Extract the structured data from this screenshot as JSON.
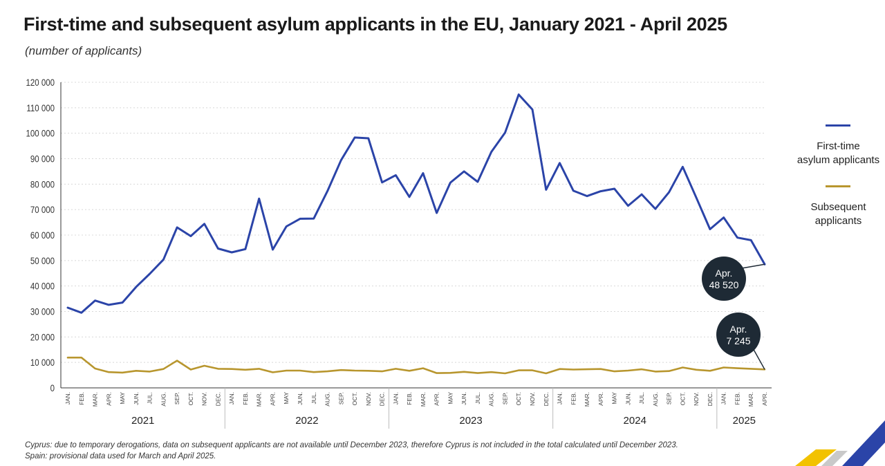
{
  "title": "First-time and subsequent asylum applicants in the EU, January 2021 - April 2025",
  "subtitle": "(number of applicants)",
  "legend": {
    "first_time": "First-time asylum applicants",
    "first_time_line1": "First-time",
    "first_time_line2": "asylum applicants",
    "subsequent": "Subsequent applicants",
    "subsequent_line1": "Subsequent",
    "subsequent_line2": "applicants"
  },
  "footnotes": [
    "Cyprus: due to temporary derogations, data on subsequent applicants are not available until December 2023, therefore Cyprus is not included in the total calculated until December 2023.",
    "Spain: provisional data used for March and April 2025."
  ],
  "chart_data": {
    "type": "line",
    "ylim": [
      0,
      120000
    ],
    "yticks": [
      "0",
      "10 000",
      "20 000",
      "30 000",
      "40 000",
      "50 000",
      "60 000",
      "70 000",
      "80 000",
      "90 000",
      "100 000",
      "110 000",
      "120 000"
    ],
    "ytick_values": [
      0,
      10000,
      20000,
      30000,
      40000,
      50000,
      60000,
      70000,
      80000,
      90000,
      100000,
      110000,
      120000
    ],
    "categories": [
      "JAN.",
      "FEB.",
      "MAR.",
      "APR.",
      "MAY",
      "JUN.",
      "JUL.",
      "AUG.",
      "SEP.",
      "OCT.",
      "NOV.",
      "DEC.",
      "JAN.",
      "FEB.",
      "MAR.",
      "APR.",
      "MAY",
      "JUN.",
      "JUL.",
      "AUG.",
      "SEP.",
      "OCT.",
      "NOV.",
      "DEC.",
      "JAN.",
      "FEB.",
      "MAR.",
      "APR.",
      "MAY",
      "JUN.",
      "JUL.",
      "AUG.",
      "SEP.",
      "OCT.",
      "NOV.",
      "DEC.",
      "JAN.",
      "FEB.",
      "MAR.",
      "APR.",
      "MAY",
      "JUN.",
      "JUL.",
      "AUG.",
      "SEP.",
      "OCT.",
      "NOV.",
      "DEC.",
      "JAN.",
      "FEB.",
      "MAR.",
      "APR."
    ],
    "years": [
      {
        "label": "2021",
        "start": 0,
        "end": 11
      },
      {
        "label": "2022",
        "start": 12,
        "end": 23
      },
      {
        "label": "2023",
        "start": 24,
        "end": 35
      },
      {
        "label": "2024",
        "start": 36,
        "end": 47
      },
      {
        "label": "2025",
        "start": 48,
        "end": 51
      }
    ],
    "series": [
      {
        "name": "First-time asylum applicants",
        "color": "#2b44a8",
        "values": [
          31500,
          29500,
          34300,
          32600,
          33500,
          39600,
          44800,
          50400,
          63000,
          59600,
          64400,
          54700,
          53200,
          54500,
          74300,
          54300,
          63400,
          66400,
          66500,
          77200,
          89400,
          98300,
          98000,
          80700,
          83500,
          75000,
          84300,
          68700,
          80600,
          85000,
          80900,
          92700,
          100200,
          115200,
          109300,
          77800,
          88300,
          77400,
          75300,
          77200,
          78200,
          71500,
          76000,
          70300,
          76800,
          86800,
          74600,
          62300,
          66900,
          59000,
          58000,
          48520
        ]
      },
      {
        "name": "Subsequent applicants",
        "color": "#b8962e",
        "values": [
          11900,
          11900,
          7600,
          6200,
          6000,
          6700,
          6400,
          7400,
          10700,
          7200,
          8700,
          7500,
          7400,
          7100,
          7500,
          6100,
          6800,
          6800,
          6200,
          6500,
          7000,
          6800,
          6700,
          6500,
          7500,
          6700,
          7700,
          5800,
          5900,
          6300,
          5800,
          6200,
          5700,
          6900,
          6900,
          5700,
          7400,
          7200,
          7300,
          7400,
          6500,
          6800,
          7300,
          6400,
          6600,
          8000,
          7100,
          6700,
          8000,
          7700,
          7500,
          7245
        ]
      }
    ],
    "annotations": [
      {
        "series": 0,
        "index": 51,
        "line1": "Apr.",
        "line2": "48 520"
      },
      {
        "series": 1,
        "index": 51,
        "line1": "Apr.",
        "line2": "7 245"
      }
    ]
  }
}
